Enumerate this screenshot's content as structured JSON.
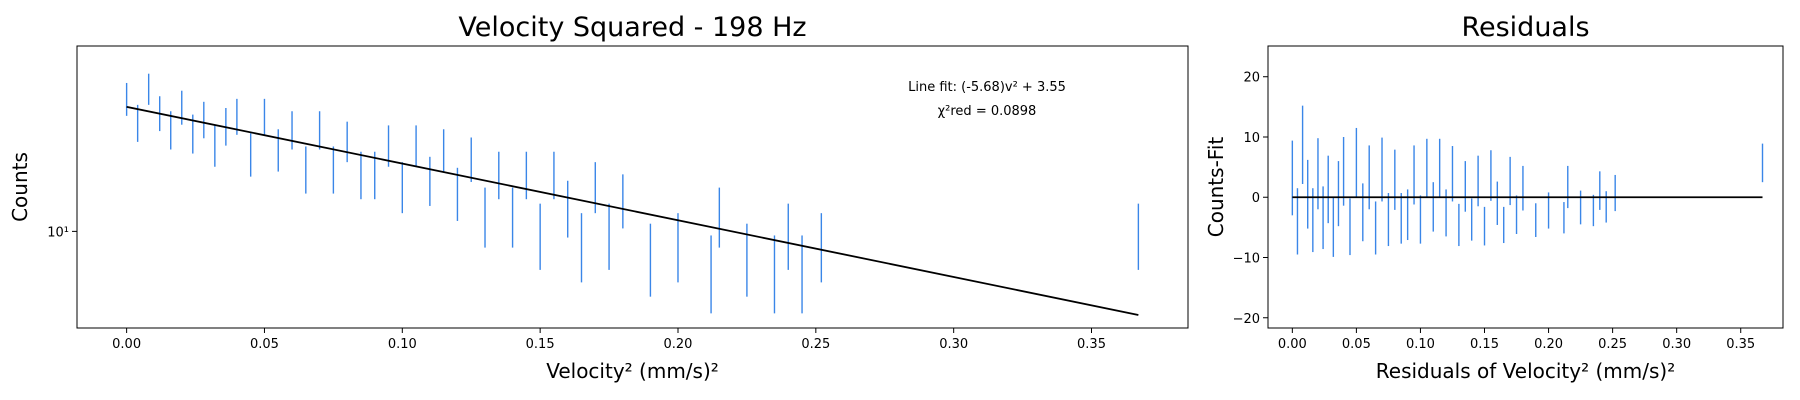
{
  "chart_data": [
    {
      "type": "errorbar",
      "title": "Velocity Squared - 198 Hz",
      "xlabel": "Velocity² (mm/s)²",
      "ylabel": "Counts",
      "yscale": "log",
      "xlim": [
        -0.018,
        0.385
      ],
      "ylim": [
        3.8,
        64
      ],
      "xticks": [
        {
          "value": 0,
          "label": "0.00"
        },
        0.05,
        {
          "value": 0.1,
          "label": "0.10"
        },
        0.15,
        {
          "value": 0.2,
          "label": "0.20"
        },
        0.25,
        {
          "value": 0.3,
          "label": "0.30"
        },
        0.35
      ],
      "yticks": [
        {
          "value": 10,
          "label": "10¹"
        }
      ],
      "annotations": [
        "Line fit: (-5.68)v² + 3.55",
        "χ²red = 0.0898"
      ],
      "series": [
        {
          "type": "errorbar",
          "color": "#3a86e8",
          "x": [
            0,
            0.004,
            0.008,
            0.012,
            0.016,
            0.02,
            0.024,
            0.028,
            0.032,
            0.036,
            0.04,
            0.045,
            0.05,
            0.055,
            0.06,
            0.065,
            0.07,
            0.075,
            0.08,
            0.085,
            0.09,
            0.095,
            0.1,
            0.105,
            0.11,
            0.115,
            0.12,
            0.125,
            0.13,
            0.135,
            0.14,
            0.145,
            0.15,
            0.155,
            0.16,
            0.165,
            0.17,
            0.175,
            0.18,
            0.19,
            0.2,
            0.212,
            0.215,
            0.225,
            0.235,
            0.24,
            0.245,
            0.252,
            0.367
          ],
          "values": [
            38,
            30,
            42,
            33,
            28,
            35,
            27,
            31,
            24,
            29,
            32,
            22,
            32,
            23,
            28,
            19,
            28,
            19,
            25,
            18,
            18,
            24,
            16,
            24,
            17,
            23,
            15,
            21,
            12,
            18,
            12,
            18,
            10,
            18,
            13,
            9,
            16,
            10,
            14,
            8,
            9,
            7,
            12,
            8,
            7,
            10,
            7,
            9,
            10
          ],
          "errors": [
            6.2,
            5.5,
            6.5,
            5.7,
            5.3,
            5.9,
            5.2,
            5.6,
            4.9,
            5.4,
            5.7,
            4.7,
            5.7,
            4.8,
            5.3,
            4.4,
            5.3,
            4.4,
            5,
            4.2,
            4.2,
            4.9,
            4,
            4.9,
            4.1,
            4.8,
            3.9,
            4.6,
            3.5,
            4.2,
            3.5,
            4.2,
            3.2,
            4.2,
            3.6,
            3,
            4,
            3.2,
            3.7,
            2.8,
            3,
            2.6,
            3.5,
            2.8,
            2.6,
            3.2,
            2.6,
            3,
            3.2
          ]
        },
        {
          "type": "line",
          "color": "#000000",
          "x": [
            0,
            0.367
          ],
          "values": [
            34.8,
            4.33
          ]
        }
      ]
    },
    {
      "type": "errorbar",
      "title": "Residuals",
      "xlabel": "Residuals of Velocity² (mm/s)²",
      "ylabel": "Counts-Fit",
      "xlim": [
        -0.019,
        0.383
      ],
      "ylim": [
        -21.7,
        25.1
      ],
      "xticks": [
        {
          "value": 0,
          "label": "0.00"
        },
        0.05,
        {
          "value": 0.1,
          "label": "0.10"
        },
        0.15,
        {
          "value": 0.2,
          "label": "0.20"
        },
        0.25,
        {
          "value": 0.3,
          "label": "0.30"
        },
        0.35
      ],
      "yticks": [
        {
          "value": -20,
          "label": "−20"
        },
        {
          "value": -10,
          "label": "−10"
        },
        0,
        10,
        20
      ],
      "series": [
        {
          "type": "errorbar",
          "color": "#3a86e8",
          "x": [
            0,
            0.004,
            0.008,
            0.012,
            0.016,
            0.02,
            0.024,
            0.028,
            0.032,
            0.036,
            0.04,
            0.045,
            0.05,
            0.055,
            0.06,
            0.065,
            0.07,
            0.075,
            0.08,
            0.085,
            0.09,
            0.095,
            0.1,
            0.105,
            0.11,
            0.115,
            0.12,
            0.125,
            0.13,
            0.135,
            0.14,
            0.145,
            0.15,
            0.155,
            0.16,
            0.165,
            0.17,
            0.175,
            0.18,
            0.19,
            0.2,
            0.212,
            0.215,
            0.225,
            0.235,
            0.24,
            0.245,
            0.252,
            0.367
          ],
          "values": [
            3.2,
            -4.0,
            8.7,
            0.5,
            -3.8,
            3.9,
            -3.4,
            1.3,
            -5.0,
            0.6,
            4.3,
            -4.9,
            5.8,
            -2.5,
            3.3,
            -5.1,
            4.6,
            -3.7,
            2.9,
            -3.5,
            -2.9,
            3.7,
            -3.7,
            4.8,
            -1.6,
            4.9,
            -2.6,
            3.9,
            -4.6,
            1.8,
            -3.7,
            2.7,
            -4.8,
            3.6,
            -1.0,
            -4.6,
            2.7,
            -2.9,
            1.5,
            -3.8,
            -2.2,
            -3.4,
            1.7,
            -1.7,
            -2.2,
            1.1,
            -1.6,
            0.7,
            5.7
          ],
          "errors": [
            6.2,
            5.5,
            6.5,
            5.7,
            5.3,
            5.9,
            5.2,
            5.6,
            4.9,
            5.4,
            5.7,
            4.7,
            5.7,
            4.8,
            5.3,
            4.4,
            5.3,
            4.4,
            5,
            4.2,
            4.2,
            4.9,
            4,
            4.9,
            4.1,
            4.8,
            3.9,
            4.6,
            3.5,
            4.2,
            3.5,
            4.2,
            3.2,
            4.2,
            3.6,
            3,
            4,
            3.2,
            3.7,
            2.8,
            3,
            2.6,
            3.5,
            2.8,
            2.6,
            3.2,
            2.6,
            3,
            3.2
          ]
        },
        {
          "type": "line",
          "color": "#000000",
          "x": [
            0,
            0.367
          ],
          "values": [
            0,
            0
          ]
        }
      ]
    }
  ]
}
